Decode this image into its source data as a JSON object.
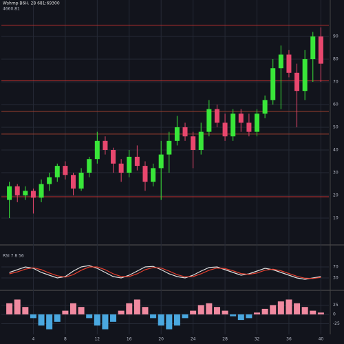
{
  "chart_data": [
    {
      "type": "candlestick",
      "title": "Wshmp B6H. 28 681:69300",
      "subtitle": "4660.81",
      "x": [
        1,
        2,
        3,
        4,
        5,
        6,
        7,
        8,
        9,
        10,
        11,
        12,
        13,
        14,
        15,
        16,
        17,
        18,
        19,
        20,
        21,
        22,
        23,
        24,
        25,
        26,
        27,
        28,
        29,
        30,
        31,
        32,
        33,
        34,
        35,
        36,
        37,
        38,
        39,
        40
      ],
      "xlim": [
        0,
        41
      ],
      "xticks": [
        4,
        8,
        12,
        16,
        20,
        24,
        28,
        32,
        36,
        40
      ],
      "open": [
        18,
        24,
        20,
        22,
        19,
        25,
        28,
        33,
        29,
        23,
        30,
        36,
        44,
        40,
        34,
        30,
        37,
        33,
        26,
        32,
        38,
        44,
        50,
        46,
        40,
        48,
        58,
        52,
        46,
        56,
        52,
        48,
        56,
        62,
        76,
        82,
        74,
        66,
        80,
        90
      ],
      "close": [
        24,
        20,
        22,
        19,
        25,
        28,
        33,
        29,
        23,
        30,
        36,
        44,
        40,
        34,
        30,
        37,
        33,
        26,
        32,
        38,
        44,
        50,
        46,
        40,
        48,
        58,
        52,
        46,
        56,
        52,
        48,
        56,
        62,
        76,
        82,
        74,
        66,
        80,
        90,
        78
      ],
      "high": [
        26,
        25,
        24,
        23,
        27,
        30,
        34,
        35,
        30,
        32,
        37,
        48,
        46,
        41,
        36,
        40,
        42,
        35,
        34,
        44,
        48,
        55,
        52,
        48,
        52,
        62,
        60,
        56,
        58,
        58,
        56,
        58,
        64,
        80,
        86,
        84,
        78,
        84,
        92,
        94
      ],
      "low": [
        10,
        17,
        18,
        12,
        17,
        22,
        26,
        27,
        20,
        22,
        28,
        34,
        38,
        30,
        26,
        28,
        31,
        22,
        24,
        18,
        30,
        42,
        44,
        32,
        38,
        46,
        50,
        44,
        44,
        48,
        46,
        46,
        54,
        60,
        58,
        72,
        50,
        62,
        70,
        70
      ],
      "up_color": "#39e639",
      "down_color": "#e8476e",
      "ylim": [
        0,
        100
      ],
      "yticks": [
        10,
        20,
        30,
        40,
        50,
        60,
        70,
        80,
        90
      ],
      "grid": true,
      "levels": [
        {
          "value": 19.4,
          "color": "#c0302f"
        },
        {
          "value": 47,
          "color": "#a0402f"
        },
        {
          "value": 57,
          "color": "#a0402f"
        },
        {
          "value": 70.5,
          "color": "#c0302f"
        },
        {
          "value": 95,
          "color": "#c0302f"
        }
      ]
    },
    {
      "type": "line",
      "title": "RSI 7 8 56",
      "x": [
        1,
        2,
        3,
        4,
        5,
        6,
        7,
        8,
        9,
        10,
        11,
        12,
        13,
        14,
        15,
        16,
        17,
        18,
        19,
        20,
        21,
        22,
        23,
        24,
        25,
        26,
        27,
        28,
        29,
        30,
        31,
        32,
        33,
        34,
        35,
        36,
        37,
        38,
        39,
        40
      ],
      "xlim": [
        0,
        41
      ],
      "ylim": [
        0,
        100
      ],
      "yticks": [
        30,
        70
      ],
      "series": [
        {
          "color": "#e0e0e0",
          "values": [
            50,
            60,
            70,
            65,
            50,
            40,
            30,
            35,
            55,
            70,
            75,
            65,
            50,
            35,
            30,
            40,
            55,
            70,
            72,
            60,
            45,
            35,
            30,
            40,
            55,
            68,
            70,
            60,
            50,
            40,
            45,
            55,
            65,
            60,
            50,
            40,
            30,
            25,
            30,
            35
          ]
        },
        {
          "color": "#e8402f",
          "values": [
            45,
            52,
            62,
            67,
            60,
            48,
            38,
            33,
            42,
            58,
            70,
            70,
            60,
            45,
            35,
            35,
            45,
            60,
            68,
            66,
            55,
            42,
            34,
            35,
            45,
            58,
            66,
            64,
            56,
            46,
            43,
            48,
            58,
            62,
            56,
            46,
            36,
            29,
            28,
            32
          ]
        }
      ]
    },
    {
      "type": "bar",
      "x": [
        1,
        2,
        3,
        4,
        5,
        6,
        7,
        8,
        9,
        10,
        11,
        12,
        13,
        14,
        15,
        16,
        17,
        18,
        19,
        20,
        21,
        22,
        23,
        24,
        25,
        26,
        27,
        28,
        29,
        30,
        31,
        32,
        33,
        34,
        35,
        36,
        37,
        38,
        39,
        40
      ],
      "xlim": [
        0,
        41
      ],
      "ylim": [
        -50,
        50
      ],
      "yticks": [
        -25,
        0,
        25
      ],
      "values": [
        30,
        40,
        20,
        -10,
        -30,
        -40,
        -20,
        10,
        30,
        20,
        -10,
        -30,
        -40,
        -20,
        10,
        30,
        40,
        20,
        -10,
        -30,
        -40,
        -30,
        -10,
        10,
        25,
        30,
        20,
        10,
        -5,
        -15,
        -10,
        5,
        15,
        25,
        35,
        40,
        30,
        20,
        10,
        5
      ],
      "pos_color": "#f08aa0",
      "neg_color": "#4aa8e0"
    }
  ]
}
